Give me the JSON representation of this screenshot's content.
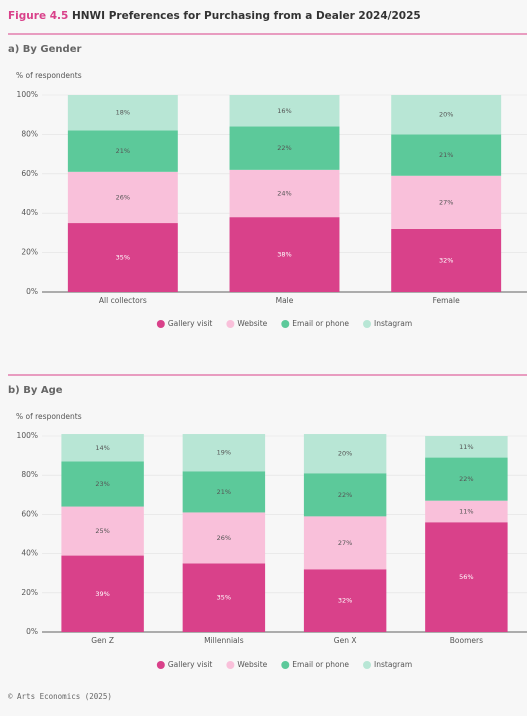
{
  "header": {
    "figure": "Figure 4.5",
    "title": "HNWI Preferences for Purchasing from a Dealer 2024/2025"
  },
  "chart_data": [
    {
      "type": "stacked_bar",
      "title": "a) By Gender",
      "y_label": "% of respondents",
      "categories": [
        "All collectors",
        "Male",
        "Female"
      ],
      "series": [
        {
          "name": "Gallery visit",
          "color": "#d9418a",
          "values": [
            35,
            38,
            32
          ],
          "value_labels": [
            "35%",
            "38%",
            "32%"
          ]
        },
        {
          "name": "Website",
          "color": "#f9c0da",
          "values": [
            26,
            24,
            27
          ],
          "value_labels": [
            "26%",
            "24%",
            "27%"
          ]
        },
        {
          "name": "Email or phone",
          "color": "#5cc99a",
          "values": [
            21,
            22,
            21
          ],
          "value_labels": [
            "21%",
            "22%",
            "21%"
          ]
        },
        {
          "name": "Instagram",
          "color": "#b8e6d5",
          "values": [
            18,
            16,
            20
          ],
          "value_labels": [
            "18%",
            "16%",
            "20%"
          ]
        }
      ],
      "ylim": [
        0,
        100
      ],
      "yticks": [
        {
          "value": 0,
          "label": "0%"
        },
        {
          "value": 20,
          "label": "20%"
        },
        {
          "value": 40,
          "label": "40%"
        },
        {
          "value": 60,
          "label": "60%"
        },
        {
          "value": 80,
          "label": "80%"
        },
        {
          "value": 100,
          "label": "100%"
        }
      ],
      "grid": true,
      "legend": "bottom"
    },
    {
      "type": "stacked_bar",
      "title": "b) By Age",
      "y_label": "% of respondents",
      "categories": [
        "Gen Z",
        "Millennials",
        "Gen X",
        "Boomers"
      ],
      "series": [
        {
          "name": "Gallery visit",
          "color": "#d9418a",
          "values": [
            39,
            35,
            32,
            56
          ],
          "value_labels": [
            "39%",
            "35%",
            "32%",
            "56%"
          ]
        },
        {
          "name": "Website",
          "color": "#f9c0da",
          "values": [
            25,
            26,
            27,
            11
          ],
          "value_labels": [
            "25%",
            "26%",
            "27%",
            "11%"
          ]
        },
        {
          "name": "Email or phone",
          "color": "#5cc99a",
          "values": [
            23,
            21,
            22,
            22
          ],
          "value_labels": [
            "23%",
            "21%",
            "22%",
            "22%"
          ]
        },
        {
          "name": "Instagram",
          "color": "#b8e6d5",
          "values": [
            14,
            19,
            20,
            11
          ],
          "value_labels": [
            "14%",
            "19%",
            "20%",
            "11%"
          ]
        }
      ],
      "ylim": [
        0,
        100
      ],
      "yticks": [
        {
          "value": 0,
          "label": "0%"
        },
        {
          "value": 20,
          "label": "20%"
        },
        {
          "value": 40,
          "label": "40%"
        },
        {
          "value": 60,
          "label": "60%"
        },
        {
          "value": 80,
          "label": "80%"
        },
        {
          "value": 100,
          "label": "100%"
        }
      ],
      "grid": true,
      "legend": "bottom"
    }
  ],
  "footer": {
    "source": "© Arts Economics (2025)"
  }
}
